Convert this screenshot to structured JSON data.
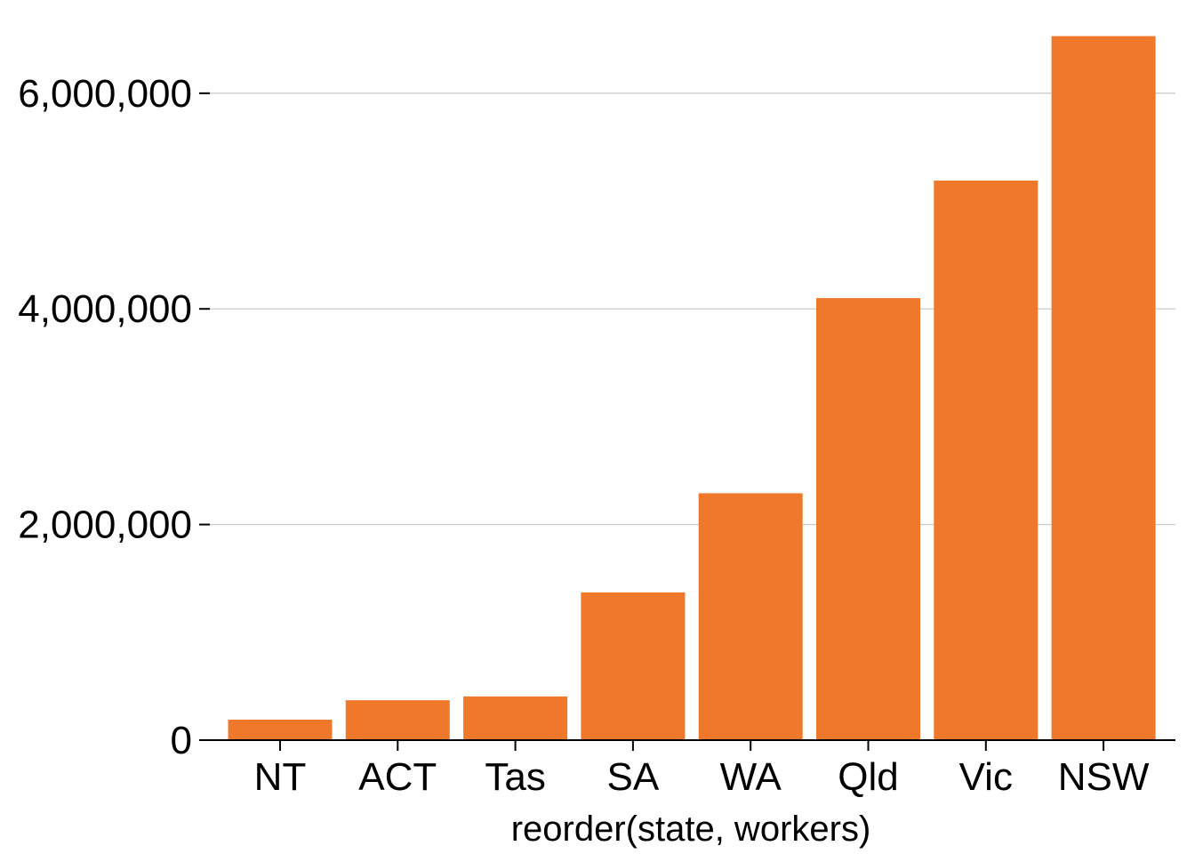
{
  "chart_data": {
    "type": "bar",
    "title": "",
    "xlabel": "reorder(state, workers)",
    "ylabel": "",
    "categories": [
      "NT",
      "ACT",
      "Tas",
      "SA",
      "WA",
      "Qld",
      "Vic",
      "NSW"
    ],
    "values": [
      190000,
      370000,
      405000,
      1370000,
      2290000,
      4100000,
      5190000,
      6530000
    ],
    "ylim": [
      0,
      6700000
    ],
    "yticks": [
      0,
      2000000,
      4000000,
      6000000
    ],
    "ytick_labels": [
      "0",
      "2,000,000",
      "4,000,000",
      "6,000,000"
    ],
    "grid": "horizontal major",
    "legend": "none",
    "colors": {
      "bar": "#f0782a",
      "grid": "#cccccc",
      "axis": "#000000",
      "background": "#ffffff"
    }
  }
}
